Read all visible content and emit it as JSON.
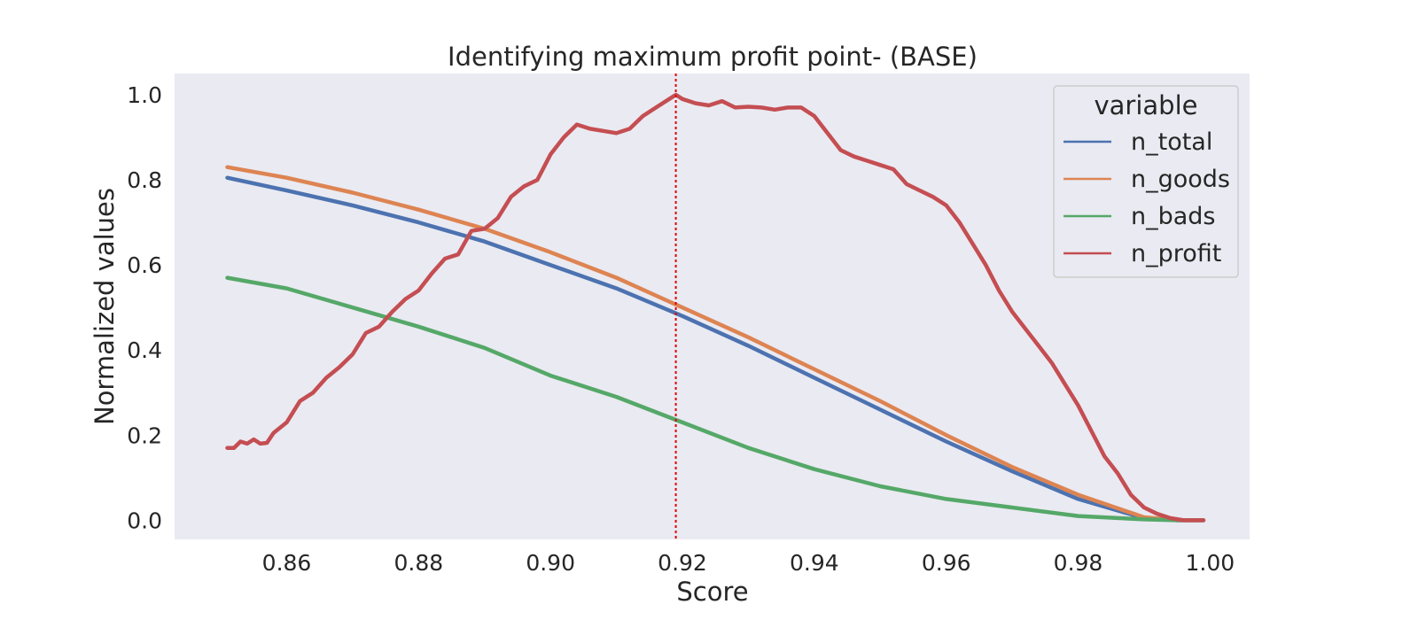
{
  "chart_data": {
    "type": "line",
    "title": "Identifying maximum profit point- (BASE)",
    "xlabel": "Score",
    "ylabel": "Normalized values",
    "xlim": [
      0.843,
      1.006
    ],
    "ylim": [
      -0.045,
      1.05
    ],
    "xticks": [
      0.86,
      0.88,
      0.9,
      0.92,
      0.94,
      0.96,
      0.98,
      1.0
    ],
    "xtick_labels": [
      "0.86",
      "0.88",
      "0.90",
      "0.92",
      "0.94",
      "0.96",
      "0.98",
      "1.00"
    ],
    "yticks": [
      0.0,
      0.2,
      0.4,
      0.6,
      0.8,
      1.0
    ],
    "ytick_labels": [
      "0.0",
      "0.2",
      "0.4",
      "0.6",
      "0.8",
      "1.0"
    ],
    "grid": false,
    "background": "#eaeaf2",
    "legend": {
      "title": "variable",
      "placement": "top-right"
    },
    "vline": {
      "x": 0.919,
      "color": "#e00000",
      "style": "dotted"
    },
    "series": [
      {
        "name": "n_total",
        "color": "#4c72b0",
        "x": [
          0.851,
          0.86,
          0.87,
          0.88,
          0.89,
          0.9,
          0.91,
          0.92,
          0.93,
          0.94,
          0.95,
          0.96,
          0.97,
          0.98,
          0.99,
          0.995,
          0.999
        ],
        "y": [
          0.805,
          0.775,
          0.74,
          0.7,
          0.655,
          0.6,
          0.545,
          0.48,
          0.41,
          0.335,
          0.26,
          0.185,
          0.115,
          0.05,
          0.005,
          0.0,
          0.0
        ]
      },
      {
        "name": "n_goods",
        "color": "#dd8452",
        "x": [
          0.851,
          0.86,
          0.87,
          0.88,
          0.89,
          0.9,
          0.91,
          0.92,
          0.93,
          0.94,
          0.95,
          0.96,
          0.97,
          0.98,
          0.99,
          0.995,
          0.999
        ],
        "y": [
          0.83,
          0.805,
          0.77,
          0.73,
          0.685,
          0.63,
          0.57,
          0.5,
          0.43,
          0.355,
          0.28,
          0.2,
          0.125,
          0.06,
          0.007,
          0.0,
          0.0
        ]
      },
      {
        "name": "n_bads",
        "color": "#55a868",
        "x": [
          0.851,
          0.86,
          0.87,
          0.88,
          0.89,
          0.9,
          0.91,
          0.92,
          0.93,
          0.94,
          0.95,
          0.96,
          0.97,
          0.98,
          0.99,
          0.995,
          0.999
        ],
        "y": [
          0.57,
          0.545,
          0.5,
          0.455,
          0.405,
          0.34,
          0.29,
          0.23,
          0.17,
          0.12,
          0.08,
          0.05,
          0.03,
          0.01,
          0.002,
          0.0,
          0.0
        ]
      },
      {
        "name": "n_profit",
        "color": "#c44e52",
        "x": [
          0.851,
          0.852,
          0.853,
          0.854,
          0.855,
          0.856,
          0.857,
          0.858,
          0.86,
          0.862,
          0.864,
          0.866,
          0.868,
          0.87,
          0.872,
          0.874,
          0.876,
          0.878,
          0.88,
          0.882,
          0.884,
          0.886,
          0.888,
          0.89,
          0.892,
          0.894,
          0.896,
          0.898,
          0.9,
          0.902,
          0.904,
          0.906,
          0.908,
          0.91,
          0.912,
          0.914,
          0.916,
          0.918,
          0.919,
          0.92,
          0.922,
          0.924,
          0.926,
          0.928,
          0.93,
          0.932,
          0.934,
          0.936,
          0.938,
          0.94,
          0.942,
          0.944,
          0.946,
          0.948,
          0.95,
          0.952,
          0.954,
          0.956,
          0.958,
          0.96,
          0.962,
          0.964,
          0.966,
          0.968,
          0.97,
          0.972,
          0.974,
          0.976,
          0.978,
          0.98,
          0.982,
          0.984,
          0.986,
          0.988,
          0.99,
          0.992,
          0.994,
          0.996,
          0.998,
          0.999
        ],
        "y": [
          0.17,
          0.17,
          0.185,
          0.18,
          0.19,
          0.18,
          0.182,
          0.205,
          0.23,
          0.28,
          0.3,
          0.335,
          0.36,
          0.39,
          0.44,
          0.455,
          0.49,
          0.52,
          0.54,
          0.58,
          0.615,
          0.625,
          0.68,
          0.685,
          0.71,
          0.76,
          0.785,
          0.8,
          0.86,
          0.9,
          0.93,
          0.92,
          0.915,
          0.91,
          0.92,
          0.95,
          0.97,
          0.99,
          1.0,
          0.99,
          0.98,
          0.975,
          0.985,
          0.97,
          0.972,
          0.97,
          0.965,
          0.97,
          0.97,
          0.95,
          0.91,
          0.87,
          0.855,
          0.845,
          0.835,
          0.825,
          0.79,
          0.775,
          0.76,
          0.74,
          0.7,
          0.65,
          0.6,
          0.54,
          0.49,
          0.45,
          0.41,
          0.37,
          0.32,
          0.27,
          0.21,
          0.15,
          0.11,
          0.06,
          0.03,
          0.015,
          0.005,
          0.0,
          0.0,
          0.0
        ]
      }
    ]
  }
}
